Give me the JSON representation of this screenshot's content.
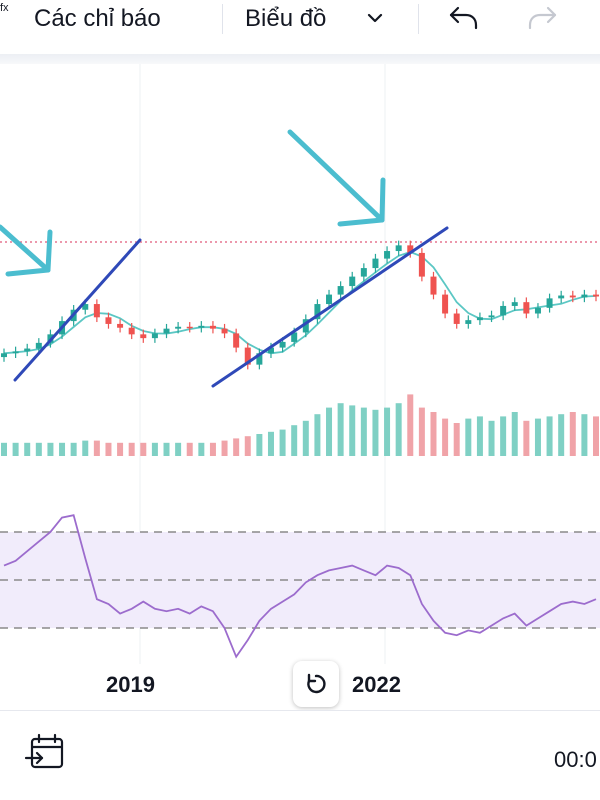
{
  "toolbar": {
    "indicators_icon": "fx",
    "indicators_label": "Các chỉ báo",
    "chart_type_label": "Biểu đồ",
    "undo_icon": "undo-icon",
    "redo_icon": "redo-icon"
  },
  "x_axis": {
    "ticks": [
      "2019",
      "2022"
    ]
  },
  "bottom_bar": {
    "goto_date_icon": "calendar-goto-icon",
    "time": "00:0"
  },
  "colors": {
    "up_candle": "#26a69a",
    "down_candle": "#ef5350",
    "up_volume": "#7fd0c4",
    "down_volume": "#f0a3a8",
    "ma_line": "#5bc7c4",
    "trend_line": "#2f49b8",
    "annotation_arrow": "#4bbdcf",
    "price_line": "#e05a7a",
    "rsi_line": "#9c6ccd",
    "rsi_band": "#f1ecfb",
    "rsi_level_line": "#8a8a8a",
    "grid": "#eef0f3"
  },
  "chart_data": {
    "type": "candlestick",
    "panes": [
      "price",
      "volume",
      "rsi"
    ],
    "x_ticks": [
      "2019",
      "2022"
    ],
    "rsi_levels": [
      70,
      50,
      30
    ],
    "price_series": [
      {
        "t": 0,
        "o": 13.0,
        "c": 13.4
      },
      {
        "t": 1,
        "o": 13.4,
        "c": 13.6
      },
      {
        "t": 2,
        "o": 13.6,
        "c": 13.9
      },
      {
        "t": 3,
        "o": 13.9,
        "c": 14.5
      },
      {
        "t": 4,
        "o": 14.5,
        "c": 15.4
      },
      {
        "t": 5,
        "o": 15.4,
        "c": 16.8
      },
      {
        "t": 6,
        "o": 16.8,
        "c": 18.0
      },
      {
        "t": 7,
        "o": 18.0,
        "c": 18.6
      },
      {
        "t": 8,
        "o": 18.6,
        "c": 17.2
      },
      {
        "t": 9,
        "o": 17.2,
        "c": 16.5
      },
      {
        "t": 10,
        "o": 16.5,
        "c": 16.1
      },
      {
        "t": 11,
        "o": 16.1,
        "c": 15.4
      },
      {
        "t": 12,
        "o": 15.4,
        "c": 15.0
      },
      {
        "t": 13,
        "o": 15.0,
        "c": 15.5
      },
      {
        "t": 14,
        "o": 15.5,
        "c": 16.0
      },
      {
        "t": 15,
        "o": 16.0,
        "c": 16.2
      },
      {
        "t": 16,
        "o": 16.2,
        "c": 16.1
      },
      {
        "t": 17,
        "o": 16.1,
        "c": 16.3
      },
      {
        "t": 18,
        "o": 16.3,
        "c": 16.0
      },
      {
        "t": 19,
        "o": 16.0,
        "c": 15.5
      },
      {
        "t": 20,
        "o": 15.5,
        "c": 14.0
      },
      {
        "t": 21,
        "o": 14.0,
        "c": 12.2
      },
      {
        "t": 22,
        "o": 12.2,
        "c": 13.4
      },
      {
        "t": 23,
        "o": 13.4,
        "c": 14.0
      },
      {
        "t": 24,
        "o": 14.0,
        "c": 14.6
      },
      {
        "t": 25,
        "o": 14.6,
        "c": 15.6
      },
      {
        "t": 26,
        "o": 15.6,
        "c": 17.0
      },
      {
        "t": 27,
        "o": 17.0,
        "c": 18.6
      },
      {
        "t": 28,
        "o": 18.6,
        "c": 19.6
      },
      {
        "t": 29,
        "o": 19.6,
        "c": 20.5
      },
      {
        "t": 30,
        "o": 20.5,
        "c": 21.5
      },
      {
        "t": 31,
        "o": 21.5,
        "c": 22.4
      },
      {
        "t": 32,
        "o": 22.4,
        "c": 23.4
      },
      {
        "t": 33,
        "o": 23.4,
        "c": 24.2
      },
      {
        "t": 34,
        "o": 24.2,
        "c": 24.8
      },
      {
        "t": 35,
        "o": 24.8,
        "c": 24.0
      },
      {
        "t": 36,
        "o": 24.0,
        "c": 21.5
      },
      {
        "t": 37,
        "o": 21.5,
        "c": 19.6
      },
      {
        "t": 38,
        "o": 19.6,
        "c": 17.6
      },
      {
        "t": 39,
        "o": 17.6,
        "c": 16.5
      },
      {
        "t": 40,
        "o": 16.5,
        "c": 16.9
      },
      {
        "t": 41,
        "o": 16.9,
        "c": 17.2
      },
      {
        "t": 42,
        "o": 17.2,
        "c": 17.4
      },
      {
        "t": 43,
        "o": 17.4,
        "c": 18.4
      },
      {
        "t": 44,
        "o": 18.4,
        "c": 18.8
      },
      {
        "t": 45,
        "o": 18.8,
        "c": 17.6
      },
      {
        "t": 46,
        "o": 17.6,
        "c": 18.2
      },
      {
        "t": 47,
        "o": 18.2,
        "c": 19.2
      },
      {
        "t": 48,
        "o": 19.2,
        "c": 19.5
      },
      {
        "t": 49,
        "o": 19.5,
        "c": 19.3
      },
      {
        "t": 50,
        "o": 19.3,
        "c": 19.6
      },
      {
        "t": 51,
        "o": 19.6,
        "c": 19.4
      }
    ],
    "volume_series": [
      6,
      6,
      6,
      6,
      6,
      6,
      6,
      7,
      7,
      6,
      6,
      6,
      6,
      6,
      6,
      6,
      6,
      6,
      6,
      7,
      8,
      9,
      10,
      11,
      12,
      14,
      16,
      19,
      22,
      24,
      23,
      22,
      21,
      22,
      24,
      28,
      22,
      20,
      17,
      15,
      17,
      18,
      16,
      18,
      20,
      16,
      17,
      18,
      19,
      20,
      19,
      18
    ],
    "rsi_series": [
      56,
      58,
      62,
      66,
      70,
      76,
      77,
      59,
      42,
      40,
      36,
      38,
      41,
      38,
      37,
      38,
      36,
      39,
      37,
      30,
      18,
      25,
      33,
      38,
      41,
      44,
      49,
      52,
      54,
      55,
      56,
      54,
      52,
      56,
      55,
      52,
      40,
      33,
      28,
      27,
      29,
      28,
      31,
      34,
      36,
      31,
      34,
      37,
      40,
      41,
      40,
      42
    ]
  }
}
